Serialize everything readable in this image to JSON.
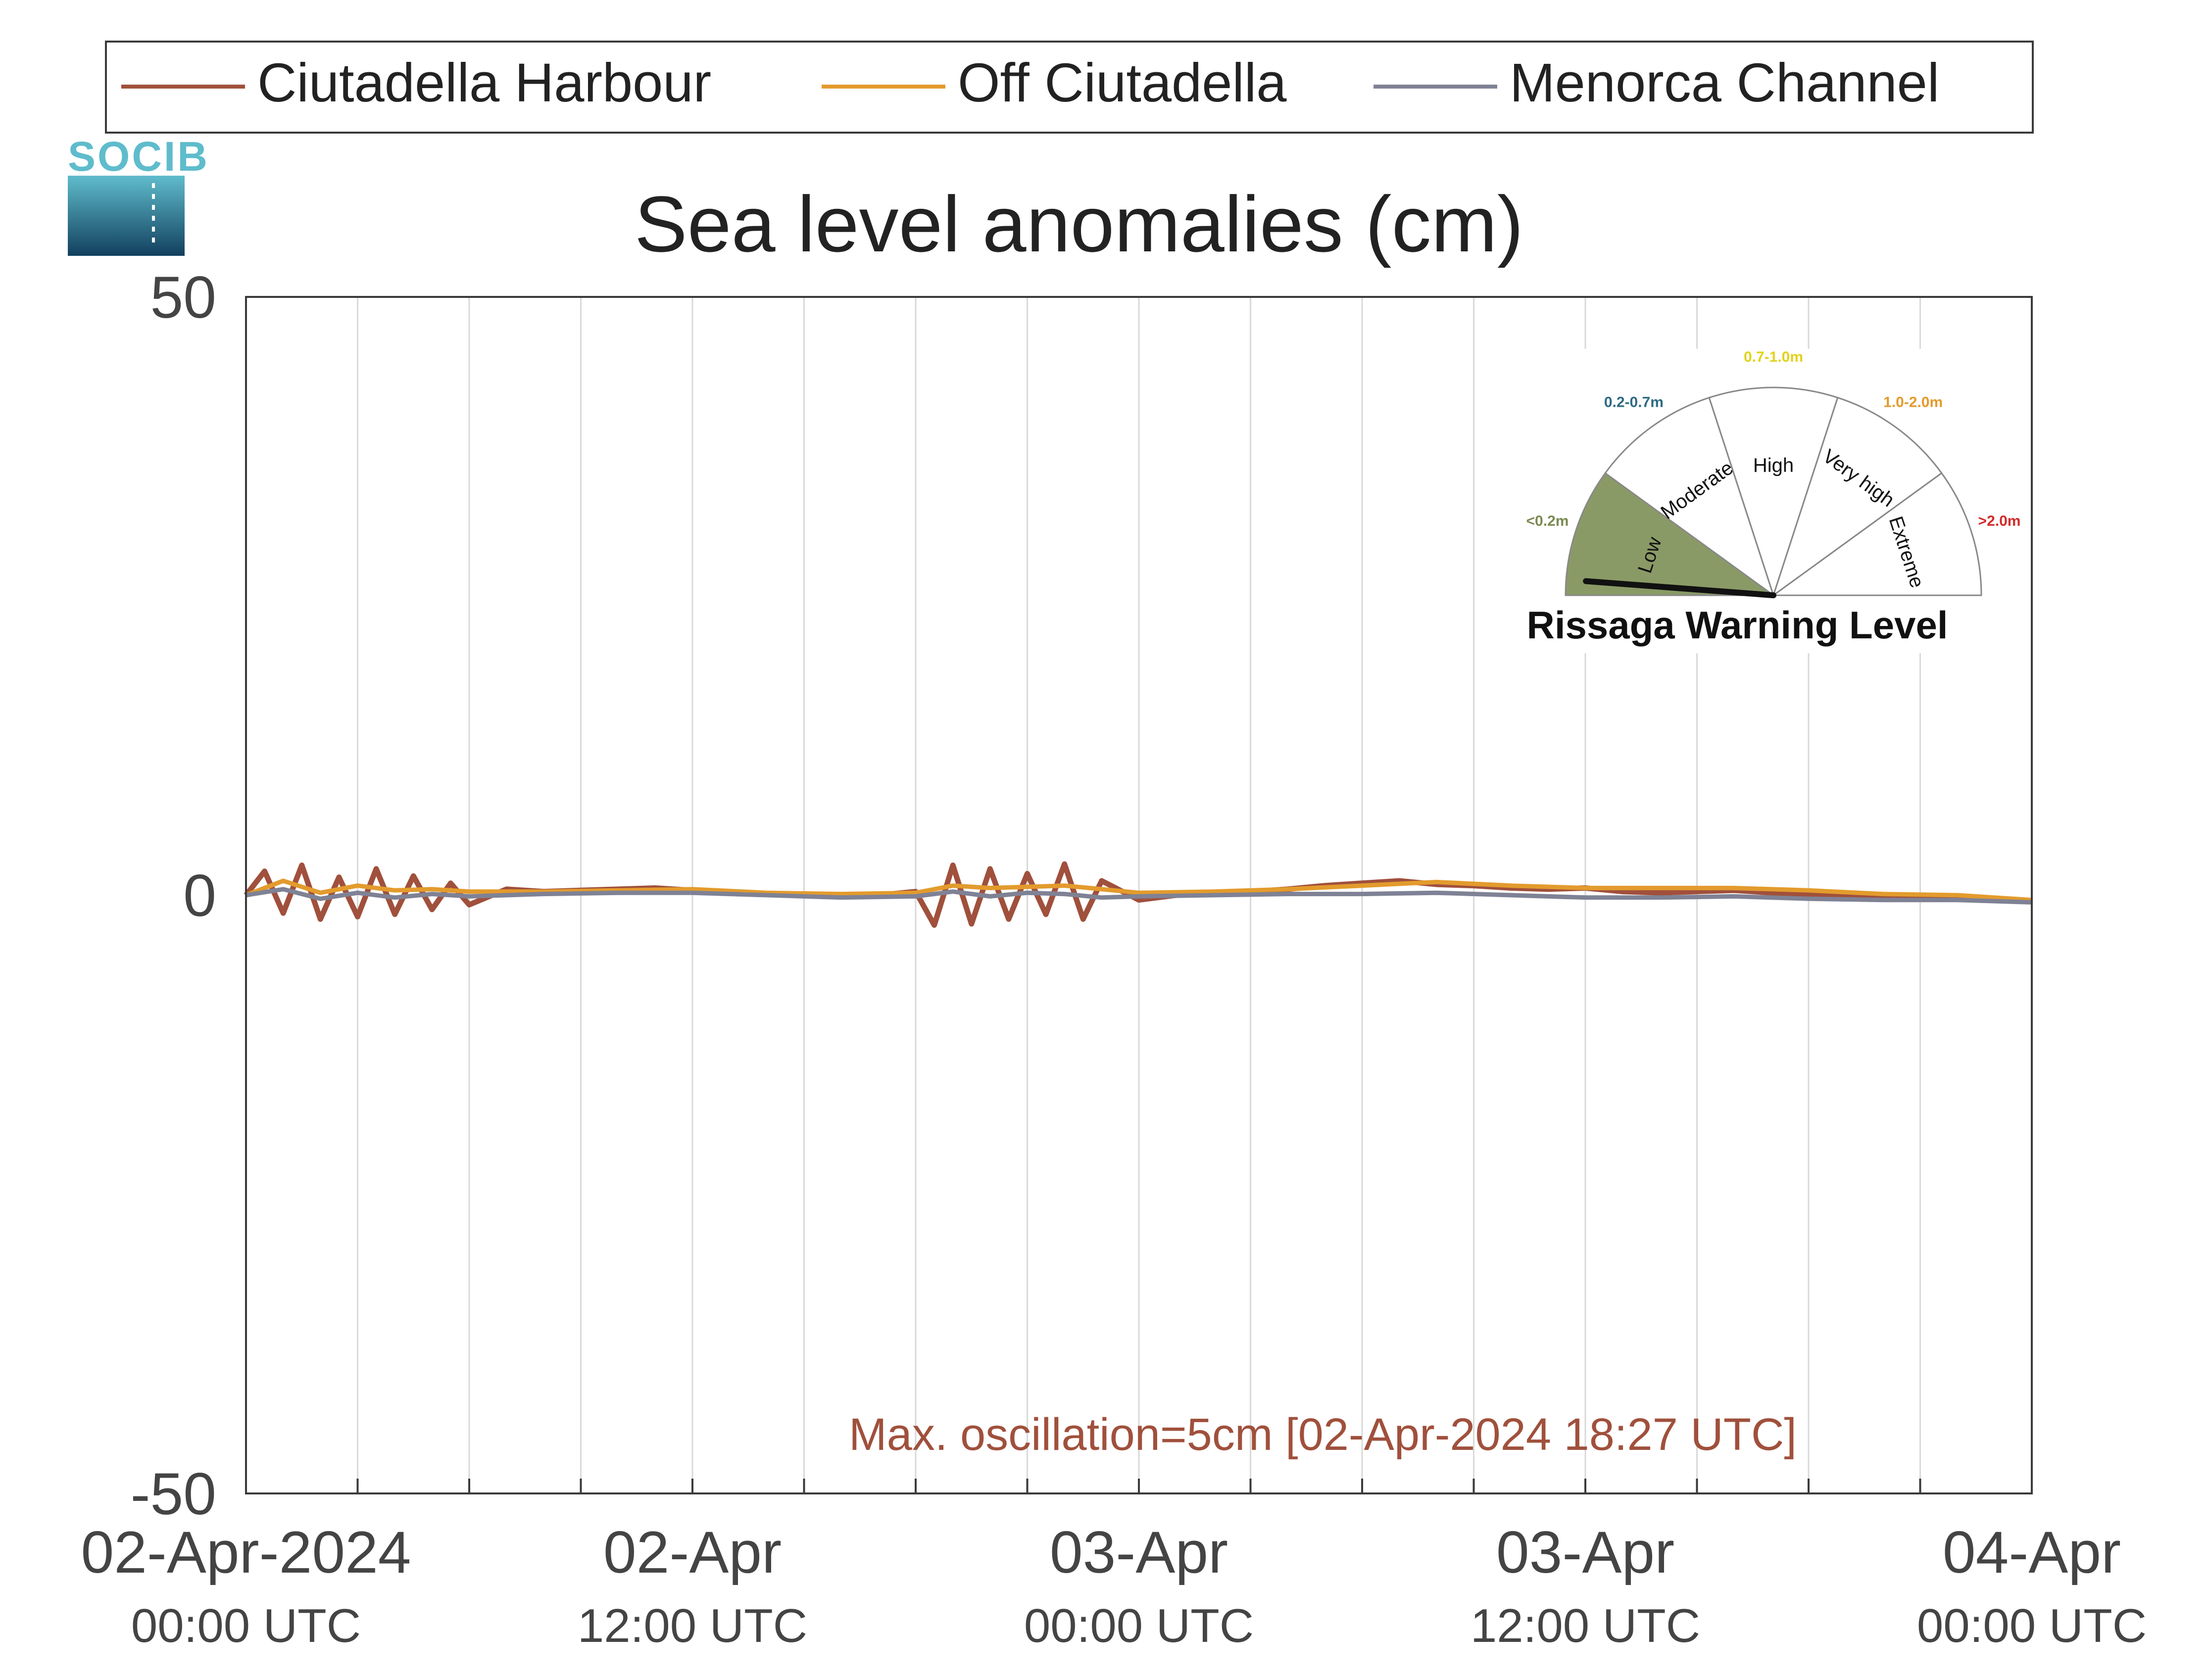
{
  "logo": {
    "text": "SOCIB"
  },
  "legend": [
    {
      "label": "Ciutadella Harbour",
      "color": "#a0503c"
    },
    {
      "label": "Off Ciutadella",
      "color": "#e39b2d"
    },
    {
      "label": "Menorca Channel",
      "color": "#7f8295"
    }
  ],
  "annotation": {
    "text": "Max. oscillation=5cm [02-Apr-2024 18:27 UTC]",
    "color": "#a0503c"
  },
  "gauge": {
    "title": "Rissaga Warning Level",
    "current_level": "Low",
    "sectors": [
      {
        "label": "Low",
        "range": "<0.2m",
        "range_color": "#7b8a52",
        "fill": "#8a9a66"
      },
      {
        "label": "Moderate",
        "range": "0.2-0.7m",
        "range_color": "#2e6b82",
        "fill": "#ffffff"
      },
      {
        "label": "High",
        "range": "0.7-1.0m",
        "range_color": "#e3d21a",
        "fill": "#ffffff"
      },
      {
        "label": "Very high",
        "range": "1.0-2.0m",
        "range_color": "#e39b2d",
        "fill": "#ffffff"
      },
      {
        "label": "Extreme",
        "range": ">2.0m",
        "range_color": "#d12a2a",
        "fill": "#ffffff"
      }
    ]
  },
  "chart_data": {
    "type": "line",
    "title": "Sea level anomalies (cm)",
    "xlabel": "",
    "ylabel": "",
    "ylim": [
      -50,
      50
    ],
    "yticks": [
      -50,
      0,
      50
    ],
    "x_unit": "hours since 02-Apr-2024 00:00 UTC",
    "xlim": [
      0,
      48
    ],
    "x_gridlines": [
      3,
      6,
      9,
      12,
      15,
      18,
      21,
      24,
      27,
      30,
      33,
      36,
      39,
      42,
      45
    ],
    "grid": true,
    "legend_position": "top",
    "xticks": [
      {
        "x": 0,
        "line1": "02-Apr-2024",
        "line2": "00:00 UTC"
      },
      {
        "x": 12,
        "line1": "02-Apr",
        "line2": "12:00 UTC"
      },
      {
        "x": 24,
        "line1": "03-Apr",
        "line2": "00:00 UTC"
      },
      {
        "x": 36,
        "line1": "03-Apr",
        "line2": "12:00 UTC"
      },
      {
        "x": 48,
        "line1": "04-Apr",
        "line2": "00:00 UTC"
      }
    ],
    "series": [
      {
        "name": "Ciutadella Harbour",
        "color": "#a0503c",
        "x": [
          0,
          0.5,
          1,
          1.5,
          2,
          2.5,
          3,
          3.5,
          4,
          4.5,
          5,
          5.5,
          6,
          7,
          8,
          9,
          10,
          11,
          12,
          13,
          14,
          15,
          16,
          17,
          18,
          18.5,
          19,
          19.5,
          20,
          20.5,
          21,
          21.5,
          22,
          22.5,
          23,
          24,
          25,
          26,
          27,
          28,
          29,
          30,
          31,
          32,
          33,
          34,
          35,
          36,
          37,
          38,
          39,
          40,
          41,
          42,
          43,
          44,
          45,
          46,
          47,
          48
        ],
        "y": [
          0.0,
          2.0,
          -1.5,
          2.5,
          -2.0,
          1.5,
          -1.8,
          2.2,
          -1.6,
          1.6,
          -1.2,
          1.0,
          -0.8,
          0.5,
          0.3,
          0.4,
          0.5,
          0.6,
          0.4,
          0.2,
          0.1,
          0.0,
          0.0,
          0.0,
          0.3,
          -2.5,
          2.5,
          -2.4,
          2.2,
          -2.0,
          1.8,
          -1.6,
          2.6,
          -2.0,
          1.2,
          -0.4,
          0.0,
          0.2,
          0.3,
          0.5,
          0.8,
          1.0,
          1.2,
          0.9,
          0.8,
          0.6,
          0.5,
          0.6,
          0.3,
          0.2,
          0.3,
          0.4,
          0.2,
          0.1,
          0.0,
          -0.1,
          -0.2,
          -0.3,
          -0.4,
          -0.5
        ]
      },
      {
        "name": "Off Ciutadella",
        "color": "#e39b2d",
        "x": [
          0,
          1,
          2,
          3,
          4,
          5,
          6,
          8,
          10,
          12,
          14,
          16,
          18,
          19,
          20,
          21,
          22,
          23,
          24,
          26,
          28,
          30,
          32,
          34,
          36,
          38,
          40,
          42,
          44,
          46,
          48
        ],
        "y": [
          0.0,
          1.2,
          0.2,
          0.8,
          0.4,
          0.5,
          0.3,
          0.3,
          0.4,
          0.5,
          0.2,
          0.1,
          0.2,
          0.8,
          0.6,
          0.7,
          0.8,
          0.5,
          0.2,
          0.3,
          0.5,
          0.8,
          1.1,
          0.8,
          0.6,
          0.6,
          0.6,
          0.4,
          0.1,
          0.0,
          -0.4
        ]
      },
      {
        "name": "Menorca Channel",
        "color": "#7f8295",
        "x": [
          0,
          1,
          2,
          3,
          4,
          5,
          6,
          8,
          10,
          12,
          14,
          16,
          18,
          19,
          20,
          21,
          22,
          23,
          24,
          26,
          28,
          30,
          32,
          34,
          36,
          38,
          40,
          42,
          44,
          46,
          48
        ],
        "y": [
          0.0,
          0.5,
          -0.3,
          0.2,
          -0.2,
          0.1,
          -0.1,
          0.1,
          0.2,
          0.2,
          0.0,
          -0.2,
          -0.1,
          0.3,
          -0.1,
          0.2,
          0.1,
          -0.2,
          -0.1,
          0.0,
          0.1,
          0.1,
          0.2,
          0.0,
          -0.2,
          -0.2,
          -0.1,
          -0.3,
          -0.4,
          -0.4,
          -0.6
        ]
      }
    ]
  }
}
